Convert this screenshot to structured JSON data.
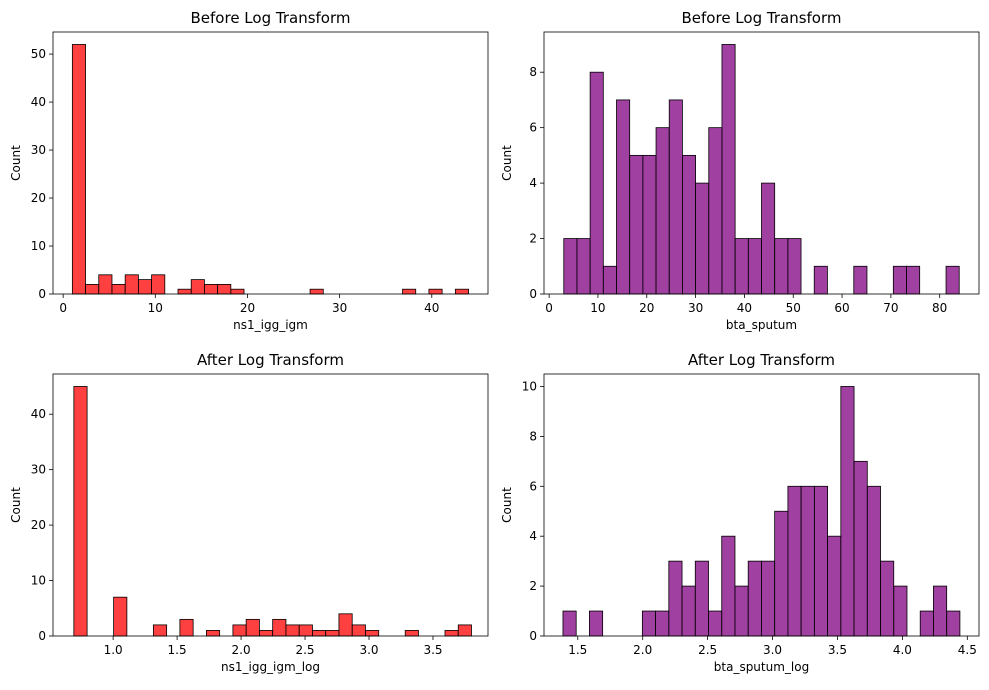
{
  "chart_data": [
    {
      "type": "bar",
      "title": "Before Log Transform",
      "xlabel": "ns1_igg_igm",
      "ylabel": "Count",
      "color": "#ff0000",
      "xlim": [
        -1.1,
        46.1
      ],
      "ylim": [
        0,
        54.6
      ],
      "xticks": [
        0,
        10,
        20,
        30,
        40
      ],
      "yticks": [
        0,
        10,
        20,
        30,
        40,
        50
      ],
      "bin_start": 1.0,
      "bin_width": 1.433,
      "counts": [
        52,
        2,
        4,
        2,
        4,
        3,
        4,
        0,
        1,
        3,
        2,
        2,
        1,
        0,
        0,
        0,
        0,
        0,
        1,
        0,
        0,
        0,
        0,
        0,
        0,
        1,
        0,
        1,
        0,
        1
      ]
    },
    {
      "type": "bar",
      "title": "Before Log Transform",
      "xlabel": "bta_sputum",
      "ylabel": "Count",
      "color": "#800080",
      "xlim": [
        -1.05,
        88.05
      ],
      "ylim": [
        0,
        9.45
      ],
      "xticks": [
        0,
        10,
        20,
        30,
        40,
        50,
        60,
        70,
        80
      ],
      "yticks": [
        0,
        2,
        4,
        6,
        8
      ],
      "bin_start": 3.0,
      "bin_width": 2.7,
      "counts": [
        2,
        2,
        8,
        1,
        7,
        5,
        5,
        6,
        7,
        5,
        4,
        6,
        9,
        2,
        2,
        4,
        2,
        2,
        0,
        1,
        0,
        0,
        1,
        0,
        0,
        1,
        1,
        0,
        0,
        1
      ]
    },
    {
      "type": "bar",
      "title": "After Log Transform",
      "xlabel": "ns1_igg_igm_log",
      "ylabel": "Count",
      "color": "#ff0000",
      "xlim": [
        0.53,
        3.93
      ],
      "ylim": [
        0,
        47.25
      ],
      "xticks": [
        1.0,
        1.5,
        2.0,
        2.5,
        3.0,
        3.5
      ],
      "yticks": [
        0,
        10,
        20,
        30,
        40
      ],
      "tick_labels": [
        "1.0",
        "1.5",
        "2.0",
        "2.5",
        "3.0",
        "3.5"
      ],
      "bin_start": 0.693,
      "bin_width": 0.1036,
      "counts": [
        45,
        0,
        0,
        7,
        0,
        0,
        2,
        0,
        3,
        0,
        1,
        0,
        2,
        3,
        1,
        3,
        2,
        2,
        1,
        1,
        4,
        2,
        1,
        0,
        0,
        1,
        0,
        0,
        1,
        2
      ]
    },
    {
      "type": "bar",
      "title": "After Log Transform",
      "xlabel": "bta_sputum_log",
      "ylabel": "Count",
      "color": "#800080",
      "xlim": [
        1.24,
        4.59
      ],
      "ylim": [
        0,
        10.5
      ],
      "xticks": [
        1.5,
        2.0,
        2.5,
        3.0,
        3.5,
        4.0,
        4.5
      ],
      "yticks": [
        0,
        2,
        4,
        6,
        8,
        10
      ],
      "tick_labels": [
        "1.5",
        "2.0",
        "2.5",
        "3.0",
        "3.5",
        "4.0",
        "4.5"
      ],
      "bin_start": 1.386,
      "bin_width": 0.1019,
      "counts": [
        1,
        0,
        1,
        0,
        0,
        0,
        1,
        1,
        3,
        2,
        3,
        1,
        4,
        2,
        3,
        3,
        5,
        6,
        6,
        6,
        4,
        10,
        7,
        6,
        3,
        2,
        0,
        1,
        2,
        1
      ]
    }
  ]
}
